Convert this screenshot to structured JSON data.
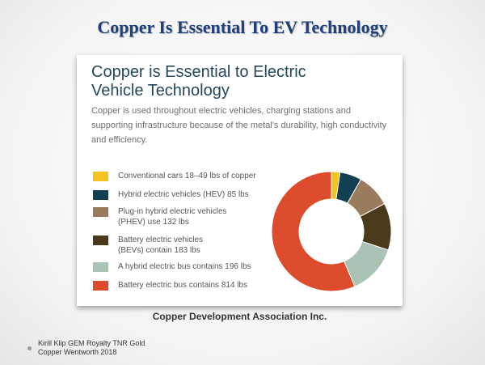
{
  "slide_title": "Copper Is Essential To EV Technology",
  "card": {
    "title_line1": "Copper is Essential to Electric",
    "title_line2": "Vehicle Technology",
    "body": "Copper is used throughout electric vehicles, charging stations and supporting infrastructure because of the metal's durability, high conductivity and efficiency."
  },
  "source": "Copper Development Association Inc.",
  "footnote": {
    "line1": "Kirill Klip GEM Royalty TNR Gold",
    "line2": "Copper Wentworth 2018"
  },
  "colors": {
    "yellow": "#f4c321",
    "dark_teal": "#123f52",
    "tan": "#9b7b5d",
    "dark_brown": "#4a3a1b",
    "sage": "#aac3b4",
    "orange_red": "#dc4b2b"
  },
  "chart_data": {
    "type": "pie",
    "donut": true,
    "unit": "lbs",
    "legend_position": "left",
    "legend": [
      {
        "lines": [
          "Conventional cars ",
          "18–49 lbs",
          " of copper"
        ]
      },
      {
        "lines": [
          "Hybrid electric vehicles (HEV) ",
          "85 lbs"
        ]
      },
      {
        "lines": [
          "Plug-in hybrid electric vehicles",
          "(PHEV) use 132 lbs"
        ]
      },
      {
        "lines": [
          "Battery electric vehicles",
          "(BEVs) contain 183 lbs"
        ]
      },
      {
        "lines": [
          "A hybrid electric bus contains 196 lbs"
        ]
      },
      {
        "lines": [
          "Battery electric bus contains 814 lbs"
        ]
      }
    ],
    "slices": [
      {
        "label": "Conventional cars",
        "value": 33.5,
        "color": "#f4c321"
      },
      {
        "label": "Hybrid electric vehicles (HEV)",
        "value": 85,
        "color": "#123f52"
      },
      {
        "label": "Plug-in hybrid electric vehicles (PHEV)",
        "value": 132,
        "color": "#9b7b5d"
      },
      {
        "label": "Battery electric vehicles (BEVs)",
        "value": 183,
        "color": "#4a3a1b"
      },
      {
        "label": "A hybrid electric bus",
        "value": 196,
        "color": "#aac3b4"
      },
      {
        "label": "Battery electric bus",
        "value": 814,
        "color": "#dc4b2b"
      }
    ]
  }
}
